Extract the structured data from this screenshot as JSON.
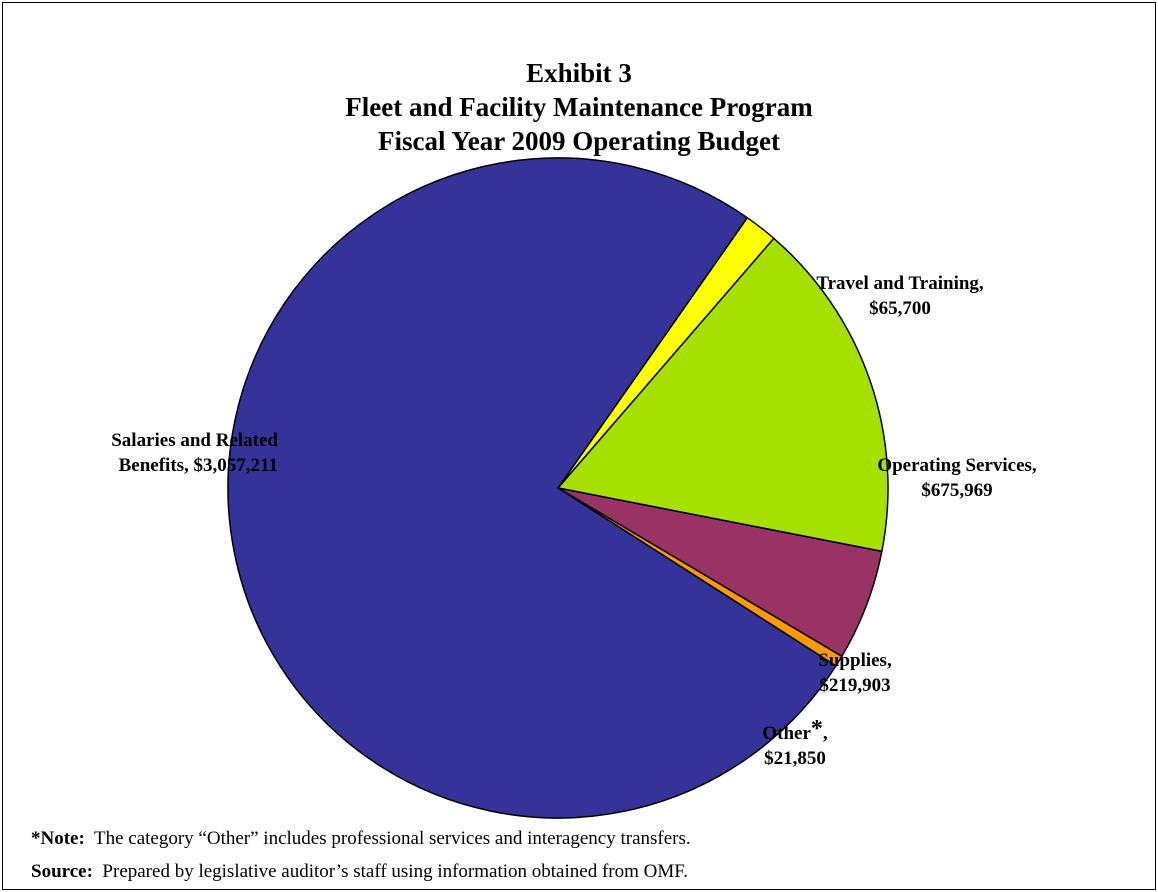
{
  "chart_data": {
    "type": "pie",
    "title_lines": [
      "Exhibit 3",
      "Fleet and Facility Maintenance Program",
      "Fiscal Year 2009 Operating Budget"
    ],
    "slices": [
      {
        "name": "Travel and Training",
        "label_line1": "Travel and Training,",
        "label_line2": "$65,700",
        "value": 65700,
        "color": "#ffff00"
      },
      {
        "name": "Operating Services",
        "label_line1": "Operating Services,",
        "label_line2": "$675,969",
        "value": 675969,
        "color": "#a6e000"
      },
      {
        "name": "Supplies",
        "label_line1": "Supplies,",
        "label_line2": "$219,903",
        "value": 219903,
        "color": "#993366"
      },
      {
        "name": "Other",
        "label_line1": "Other",
        "label_asterisk": "*",
        "label_comma": ",",
        "label_line2": "$21,850",
        "value": 21850,
        "color": "#ff9900"
      },
      {
        "name": "Salaries and Related Benefits",
        "label_line1": "Salaries and Related",
        "label_line2": "Benefits, $3,057,211",
        "value": 3057211,
        "color": "#333399"
      }
    ],
    "start_angle_deg": 55
  },
  "notes": {
    "note_label": "*Note:",
    "note_text": "The category “Other” includes professional services and interagency transfers.",
    "source_label": "Source:",
    "source_text": "Prepared by legislative auditor’s staff using information obtained from OMF."
  }
}
